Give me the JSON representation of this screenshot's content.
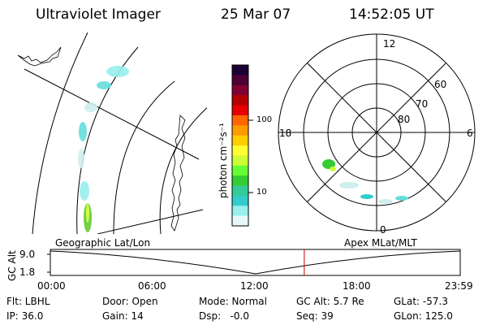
{
  "header": {
    "instrument": "Ultraviolet Imager",
    "date": "25 Mar 07",
    "time": "14:52:05 UT"
  },
  "colorbar": {
    "unit_label": "photon cm⁻²s⁻¹",
    "ticks": [
      "100",
      "10"
    ],
    "colors": [
      "#1a0033",
      "#4d0033",
      "#800033",
      "#b30000",
      "#e60000",
      "#ff6600",
      "#ff9900",
      "#ffcc00",
      "#ffff33",
      "#ccff33",
      "#66ff33",
      "#33cc33",
      "#33cc99",
      "#33cccc",
      "#99eeee",
      "#e6f7f7"
    ]
  },
  "polar_plot": {
    "label_12": "12",
    "label_18": "18",
    "label_6": "6",
    "label_0": "0",
    "lat_60": "60",
    "lat_70": "70",
    "lat_80": "80"
  },
  "timeline": {
    "left_title": "Geographic Lat/Lon",
    "right_title": "Apex MLat/MLT",
    "y_label": "GC Alt",
    "y_max": "9.0",
    "y_min": "1.8",
    "x_ticks": [
      "00:00",
      "06:00",
      "12:00",
      "18:00",
      "23:59"
    ],
    "current_time_fraction": 0.6196
  },
  "info": {
    "filter": "Flt: LBHL",
    "door": "Door: Open",
    "mode": "Mode: Normal",
    "gc_alt": "GC Alt: 5.7 Re",
    "glat": "GLat: -57.3",
    "ip": "IP: 36.0",
    "gain": "Gain: 14",
    "dsp": "Dsp:   -0.0",
    "seq": "Seq: 39",
    "glon": "GLon: 125.0"
  }
}
